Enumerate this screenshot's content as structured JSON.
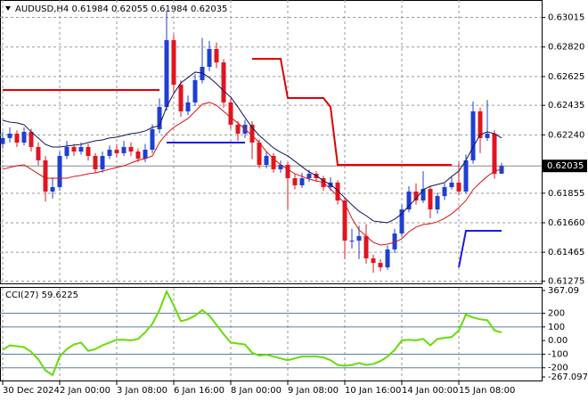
{
  "chart_data": {
    "type": "candlestick",
    "title": "AUDUSD,H4  0.61984 0.62055 0.61984 0.62035",
    "categories": [
      "30 Dec 2024",
      null,
      null,
      null,
      null,
      null,
      null,
      null,
      "2 Jan 00:00",
      null,
      null,
      null,
      null,
      null,
      null,
      null,
      "3 Jan 08:00",
      null,
      null,
      null,
      null,
      null,
      null,
      null,
      "6 Jan 16:00",
      null,
      null,
      null,
      null,
      null,
      null,
      null,
      "8 Jan 00:00",
      null,
      null,
      null,
      null,
      null,
      null,
      null,
      "9 Jan 08:00",
      null,
      null,
      null,
      null,
      null,
      null,
      null,
      "10 Jan 16:00",
      null,
      null,
      null,
      null,
      null,
      null,
      null,
      "14 Jan 00:00",
      null,
      null,
      null,
      null,
      null,
      null,
      null,
      "15 Jan 08:00",
      null,
      null,
      null,
      null,
      null,
      null
    ],
    "open": [
      0.6218,
      0.62219,
      0.62248,
      0.62189,
      0.6226,
      0.6216,
      0.62072,
      0.61866,
      0.61895,
      0.62101,
      0.6216,
      0.6213,
      0.6216,
      0.62101,
      0.62013,
      0.62101,
      0.62142,
      0.62119,
      0.6216,
      0.6213,
      0.62083,
      0.62142,
      0.62277,
      0.62424,
      0.62865,
      0.62571,
      0.62395,
      0.62454,
      0.62601,
      0.62689,
      0.62807,
      0.62718,
      0.62454,
      0.62307,
      0.62248,
      0.62307,
      0.62189,
      0.62042,
      0.62101,
      0.62013,
      0.62042,
      0.61954,
      0.61907,
      0.61954,
      0.61983,
      0.61954,
      0.61895,
      0.61925,
      0.61807,
      0.61542,
      0.61542,
      0.61572,
      0.61425,
      0.61395,
      0.61366,
      0.61484,
      0.61589,
      0.61748,
      0.61866,
      0.61807,
      0.61883,
      0.61748,
      0.61836,
      0.61895,
      0.61925,
      0.61866,
      0.62072,
      0.62395,
      0.62219,
      0.62248,
      0.61984
    ],
    "high": [
      0.6226,
      0.6229,
      0.6227,
      0.6229,
      0.6228,
      0.6219,
      0.621,
      0.6196,
      0.6213,
      0.622,
      0.6218,
      0.6219,
      0.6218,
      0.6212,
      0.6213,
      0.6217,
      0.6218,
      0.622,
      0.6219,
      0.6215,
      0.6218,
      0.6231,
      0.6248,
      0.6306,
      0.629,
      0.626,
      0.625,
      0.6264,
      0.6288,
      0.6286,
      0.6285,
      0.6274,
      0.6248,
      0.6233,
      0.6234,
      0.6233,
      0.6221,
      0.6213,
      0.6212,
      0.6207,
      0.6206,
      0.6198,
      0.6199,
      0.6201,
      0.62,
      0.6197,
      0.6196,
      0.6194,
      0.6183,
      0.6162,
      0.6164,
      0.6165,
      0.6145,
      0.6142,
      0.6151,
      0.6162,
      0.6178,
      0.619,
      0.6192,
      0.62,
      0.619,
      0.6186,
      0.6192,
      0.6196,
      0.6206,
      0.6211,
      0.6246,
      0.6242,
      0.6247,
      0.6227,
      0.62055
    ],
    "low": [
      0.6215,
      0.6219,
      0.6216,
      0.6217,
      0.6213,
      0.6204,
      0.618,
      0.6182,
      0.6187,
      0.6208,
      0.621,
      0.6211,
      0.6207,
      0.6199,
      0.6199,
      0.6208,
      0.6209,
      0.621,
      0.621,
      0.6206,
      0.6206,
      0.6212,
      0.6225,
      0.624,
      0.6252,
      0.6236,
      0.6237,
      0.6243,
      0.6258,
      0.6266,
      0.6268,
      0.6242,
      0.6228,
      0.622,
      0.6222,
      0.6208,
      0.6202,
      0.6202,
      0.6199,
      0.6199,
      0.6175,
      0.6188,
      0.6189,
      0.6193,
      0.6193,
      0.6187,
      0.6187,
      0.6178,
      0.6142,
      0.6149,
      0.6142,
      0.6139,
      0.6133,
      0.6134,
      0.6135,
      0.6146,
      0.6157,
      0.6173,
      0.6178,
      0.6179,
      0.6169,
      0.6172,
      0.6181,
      0.6188,
      0.6184,
      0.6185,
      0.6205,
      0.6212,
      0.622,
      0.6195,
      0.61984
    ],
    "close": [
      0.62219,
      0.62248,
      0.62189,
      0.6226,
      0.6216,
      0.62072,
      0.61866,
      0.61895,
      0.62101,
      0.6216,
      0.6213,
      0.6216,
      0.62101,
      0.62013,
      0.62101,
      0.62142,
      0.62119,
      0.6216,
      0.6213,
      0.62083,
      0.62142,
      0.62277,
      0.62424,
      0.62865,
      0.62571,
      0.62395,
      0.62454,
      0.62601,
      0.62689,
      0.62807,
      0.62718,
      0.62454,
      0.62307,
      0.62248,
      0.62307,
      0.62189,
      0.62042,
      0.62101,
      0.62013,
      0.62042,
      0.61954,
      0.61907,
      0.61954,
      0.61983,
      0.61954,
      0.61895,
      0.61925,
      0.61807,
      0.61542,
      0.61542,
      0.61572,
      0.61425,
      0.61395,
      0.61366,
      0.61484,
      0.61589,
      0.61748,
      0.61866,
      0.61807,
      0.61883,
      0.61748,
      0.61836,
      0.61895,
      0.61925,
      0.61866,
      0.62072,
      0.62395,
      0.62219,
      0.62248,
      0.61983,
      0.62035
    ],
    "up_color": "#1f3fd0",
    "down_color": "#e0151f",
    "lines": [
      {
        "color": "#14145a",
        "values": [
          0.62336,
          0.62324,
          0.62319,
          0.62307,
          0.6226,
          0.62219,
          0.62177,
          0.6216,
          0.6216,
          0.62166,
          0.62172,
          0.62177,
          0.62189,
          0.62201,
          0.62207,
          0.62219,
          0.62225,
          0.62236,
          0.62248,
          0.62254,
          0.62266,
          0.62289,
          0.62301,
          0.62424,
          0.62513,
          0.62583,
          0.62618,
          0.62654,
          0.62648,
          0.62618,
          0.62577,
          0.6253,
          0.62489,
          0.62424,
          0.62354,
          0.62289,
          0.62236,
          0.62195,
          0.62154,
          0.62125,
          0.62101,
          0.62066,
          0.6203,
          0.61995,
          0.61972,
          0.61936,
          0.61913,
          0.61872,
          0.61825,
          0.61778,
          0.61736,
          0.61707,
          0.61672,
          0.61666,
          0.6166,
          0.61684,
          0.61719,
          0.61772,
          0.61819,
          0.61878,
          0.61901,
          0.61913,
          0.61925,
          0.61966,
          0.62001,
          0.62072,
          0.6216,
          0.62242,
          0.6226,
          0.62248,
          0.62219
        ]
      },
      {
        "color": "#e01010",
        "values": [
          0.62013,
          0.62025,
          0.62036,
          0.62042,
          0.62013,
          0.61983,
          0.61954,
          0.61954,
          0.61954,
          0.61954,
          0.61966,
          0.61972,
          0.61983,
          0.61989,
          0.62001,
          0.62013,
          0.62025,
          0.62036,
          0.62054,
          0.62072,
          0.62083,
          0.62101,
          0.62189,
          0.62248,
          0.62289,
          0.62319,
          0.62348,
          0.62395,
          0.62442,
          0.62454,
          0.62436,
          0.62395,
          0.62354,
          0.62319,
          0.62277,
          0.62236,
          0.62189,
          0.6213,
          0.62083,
          0.62042,
          0.62013,
          0.61983,
          0.61966,
          0.61948,
          0.61936,
          0.61925,
          0.61883,
          0.61836,
          0.61789,
          0.61689,
          0.61613,
          0.61572,
          0.61531,
          0.61513,
          0.61519,
          0.61531,
          0.61554,
          0.61601,
          0.61631,
          0.61648,
          0.61654,
          0.61666,
          0.61689,
          0.61719,
          0.6176,
          0.61807,
          0.61878,
          0.61925,
          0.61966,
          0.62001,
          0.62013
        ]
      },
      {
        "color": "#e00000",
        "values": [
          0.62536,
          0.62536,
          0.62536,
          0.62536,
          0.62536,
          0.62536,
          0.62536,
          0.62536,
          0.62536,
          0.62536,
          0.62536,
          0.62536,
          0.62536,
          0.62536,
          0.62536,
          0.62536,
          0.62536,
          0.62536,
          0.62536,
          0.62536,
          0.62536,
          0.62536,
          0.62536,
          null,
          null,
          null,
          null,
          null,
          null,
          null,
          null,
          null,
          null,
          null,
          null,
          0.62742,
          0.62742,
          0.62742,
          0.62742,
          0.62742,
          0.62483,
          0.62483,
          0.62483,
          0.62483,
          0.62483,
          0.62483,
          0.62424,
          0.62042,
          0.62042,
          0.62042,
          0.62042,
          0.62042,
          0.62042,
          0.62042,
          0.62042,
          0.62042,
          0.62042,
          0.62042,
          0.62042,
          0.62042,
          0.62042,
          0.62042,
          0.62042,
          0.62042,
          null,
          null,
          null,
          null,
          null,
          null,
          null
        ]
      },
      {
        "color": "#1a1ae6",
        "values": [
          null,
          null,
          null,
          null,
          null,
          null,
          null,
          null,
          null,
          null,
          null,
          null,
          null,
          null,
          null,
          null,
          null,
          null,
          null,
          null,
          null,
          null,
          null,
          0.62189,
          0.62189,
          0.62189,
          0.62189,
          0.62189,
          0.62189,
          0.62189,
          0.62189,
          0.62189,
          0.62189,
          0.62189,
          0.62189,
          null,
          null,
          null,
          null,
          null,
          null,
          null,
          null,
          null,
          null,
          null,
          null,
          null,
          null,
          null,
          null,
          null,
          null,
          null,
          null,
          null,
          null,
          null,
          null,
          null,
          null,
          null,
          null,
          null,
          0.61366,
          0.61607,
          0.61607,
          0.61607,
          0.61607,
          0.61607,
          0.61607
        ]
      }
    ],
    "ylim": [
      0.6126,
      0.6313
    ],
    "yticks": [
      0.63015,
      {
        "value": 0.6282,
        "label": "0.62820"
      },
      0.62625,
      0.62435,
      {
        "value": 0.6224,
        "label": "0.62240"
      },
      0.61855,
      {
        "value": 0.6166,
        "label": "0.61660"
      },
      0.61465,
      0.61275
    ],
    "last_price": {
      "value": 0.62035,
      "label": "0.62035"
    },
    "grid": true,
    "indicator": {
      "label": "CCI(27) 59.6225",
      "color": "#66dd00",
      "values": [
        -69,
        -35,
        -42,
        -49,
        -83,
        -138,
        -219,
        -254,
        -117,
        -63,
        -29,
        -15,
        -76,
        -63,
        -35,
        -15,
        6,
        6,
        1,
        12,
        60,
        122,
        224,
        360,
        258,
        142,
        156,
        183,
        224,
        183,
        115,
        47,
        -15,
        -22,
        -29,
        -90,
        -110,
        -104,
        -117,
        -131,
        -144,
        -131,
        -117,
        -117,
        -117,
        -124,
        -144,
        -179,
        -185,
        -179,
        -165,
        -179,
        -172,
        -151,
        -117,
        -69,
        1,
        6,
        1,
        12,
        -35,
        12,
        19,
        26,
        74,
        190,
        169,
        156,
        149,
        74,
        59.6225
      ],
      "ylim": [
        -267.097,
        367.09
      ],
      "yticks": [
        367.09,
        200,
        100,
        {
          "value": 0,
          "label": "0.00"
        },
        -100,
        -200,
        -267.097
      ]
    }
  }
}
